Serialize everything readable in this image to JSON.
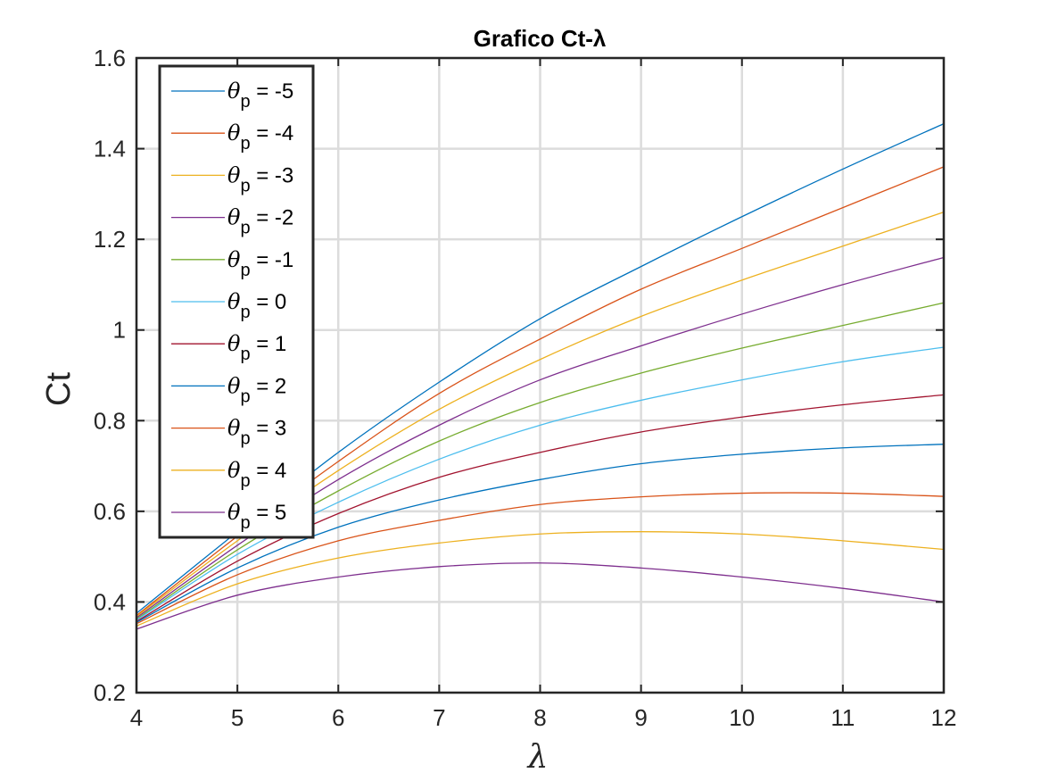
{
  "chart_data": {
    "type": "line",
    "title": "Grafico Ct-λ",
    "xlabel": "λ",
    "ylabel": "Ct",
    "xlim": [
      4,
      12
    ],
    "ylim": [
      0.2,
      1.6
    ],
    "xticks": [
      4,
      5,
      6,
      7,
      8,
      9,
      10,
      11,
      12
    ],
    "yticks": [
      0.2,
      0.4,
      0.6,
      0.8,
      1.0,
      1.2,
      1.4,
      1.6
    ],
    "xtick_labels": [
      "4",
      "5",
      "6",
      "7",
      "8",
      "9",
      "10",
      "11",
      "12"
    ],
    "ytick_labels": [
      "0.2",
      "0.4",
      "0.6",
      "0.8",
      "1",
      "1.2",
      "1.4",
      "1.6"
    ],
    "grid": true,
    "legend_position": "top-left",
    "x": [
      4,
      5,
      6,
      7,
      8,
      9,
      10,
      11,
      12
    ],
    "series": [
      {
        "name": "θp = -5",
        "legend_var": "θ",
        "legend_sub": "p",
        "legend_value": "= -5",
        "color": "#0072BD",
        "values": [
          0.375,
          0.555,
          0.73,
          0.885,
          1.025,
          1.14,
          1.25,
          1.355,
          1.455
        ]
      },
      {
        "name": "θp = -4",
        "legend_var": "θ",
        "legend_sub": "p",
        "legend_value": "= -4",
        "color": "#D95319",
        "values": [
          0.37,
          0.545,
          0.71,
          0.86,
          0.98,
          1.09,
          1.18,
          1.27,
          1.36
        ]
      },
      {
        "name": "θp = -3",
        "legend_var": "θ",
        "legend_sub": "p",
        "legend_value": "= -3",
        "color": "#EDB120",
        "values": [
          0.368,
          0.535,
          0.69,
          0.825,
          0.935,
          1.03,
          1.11,
          1.185,
          1.26
        ]
      },
      {
        "name": "θp = -2",
        "legend_var": "θ",
        "legend_sub": "p",
        "legend_value": "= -2",
        "color": "#7E2F8E",
        "values": [
          0.365,
          0.525,
          0.67,
          0.79,
          0.89,
          0.965,
          1.035,
          1.1,
          1.16
        ]
      },
      {
        "name": "θp = -1",
        "legend_var": "θ",
        "legend_sub": "p",
        "legend_value": "= -1",
        "color": "#77AC30",
        "values": [
          0.362,
          0.515,
          0.645,
          0.755,
          0.84,
          0.905,
          0.96,
          1.01,
          1.06
        ]
      },
      {
        "name": "θp = 0",
        "legend_var": "θ",
        "legend_sub": "p",
        "legend_value": "= 0",
        "color": "#4DBEEE",
        "values": [
          0.36,
          0.505,
          0.62,
          0.715,
          0.79,
          0.845,
          0.89,
          0.93,
          0.962
        ]
      },
      {
        "name": "θp = 1",
        "legend_var": "θ",
        "legend_sub": "p",
        "legend_value": "= 1",
        "color": "#A2142F",
        "values": [
          0.357,
          0.49,
          0.595,
          0.675,
          0.73,
          0.775,
          0.808,
          0.835,
          0.857
        ]
      },
      {
        "name": "θp = 2",
        "legend_var": "θ",
        "legend_sub": "p",
        "legend_value": "= 2",
        "color": "#0072BD",
        "values": [
          0.355,
          0.475,
          0.565,
          0.625,
          0.67,
          0.705,
          0.726,
          0.74,
          0.748
        ]
      },
      {
        "name": "θp = 3",
        "legend_var": "θ",
        "legend_sub": "p",
        "legend_value": "= 3",
        "color": "#D95319",
        "values": [
          0.352,
          0.46,
          0.535,
          0.58,
          0.615,
          0.632,
          0.64,
          0.64,
          0.633
        ]
      },
      {
        "name": "θp = 4",
        "legend_var": "θ",
        "legend_sub": "p",
        "legend_value": "= 4",
        "color": "#EDB120",
        "values": [
          0.347,
          0.44,
          0.497,
          0.53,
          0.55,
          0.555,
          0.55,
          0.535,
          0.516
        ]
      },
      {
        "name": "θp = 5",
        "legend_var": "θ",
        "legend_sub": "p",
        "legend_value": "= 5",
        "color": "#7E2F8E",
        "values": [
          0.34,
          0.415,
          0.455,
          0.478,
          0.486,
          0.475,
          0.455,
          0.43,
          0.4
        ]
      }
    ]
  }
}
